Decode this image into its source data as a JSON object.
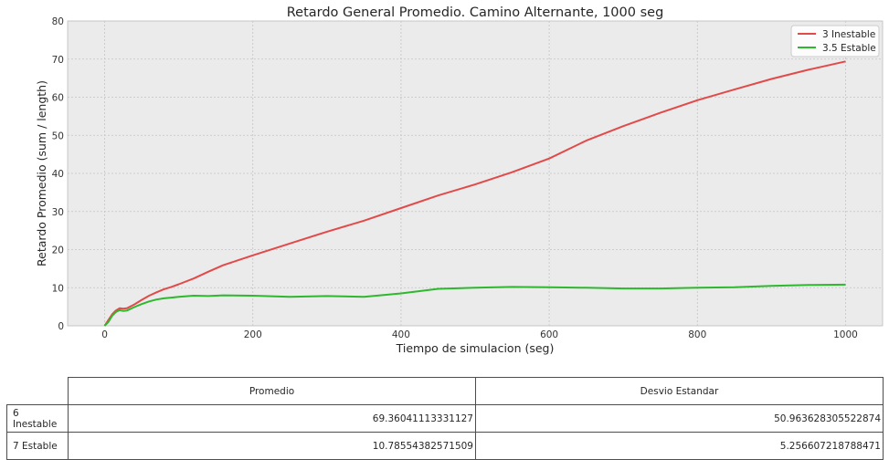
{
  "chart_data": {
    "type": "line",
    "title": "Retardo General Promedio. Camino Alternante, 1000 seg",
    "xlabel": "Tiempo de simulacion (seg)",
    "ylabel": "Retardo Promedio (sum / length)",
    "xlim": [
      -50,
      1050
    ],
    "ylim": [
      0,
      80
    ],
    "xticks": [
      0,
      200,
      400,
      600,
      800,
      1000
    ],
    "yticks": [
      0,
      10,
      20,
      30,
      40,
      50,
      60,
      70,
      80
    ],
    "grid": true,
    "legend_position": "top-right",
    "series": [
      {
        "name": "3 Inestable",
        "color": "#e24a4a",
        "x": [
          0,
          5,
          10,
          15,
          20,
          25,
          30,
          40,
          50,
          60,
          70,
          80,
          90,
          100,
          120,
          140,
          160,
          180,
          200,
          250,
          300,
          350,
          400,
          450,
          500,
          550,
          600,
          650,
          700,
          750,
          800,
          850,
          900,
          950,
          1000
        ],
        "y": [
          0,
          1.5,
          3.0,
          4.0,
          4.6,
          4.5,
          4.6,
          5.6,
          6.8,
          7.9,
          8.8,
          9.6,
          10.2,
          10.9,
          12.4,
          14.2,
          15.9,
          17.2,
          18.5,
          21.6,
          24.7,
          27.6,
          30.9,
          34.2,
          37.1,
          40.3,
          43.9,
          48.6,
          52.4,
          55.9,
          59.2,
          62.0,
          64.8,
          67.2,
          69.4
        ]
      },
      {
        "name": "3.5 Estable",
        "color": "#2eb82e",
        "x": [
          0,
          5,
          10,
          15,
          20,
          25,
          30,
          40,
          50,
          60,
          70,
          80,
          90,
          100,
          120,
          140,
          160,
          200,
          250,
          300,
          350,
          400,
          450,
          500,
          550,
          600,
          650,
          700,
          750,
          800,
          850,
          900,
          950,
          1000
        ],
        "y": [
          0,
          1.0,
          2.6,
          3.6,
          4.1,
          3.9,
          4.0,
          4.9,
          5.7,
          6.4,
          6.9,
          7.2,
          7.4,
          7.6,
          7.9,
          7.8,
          8.0,
          7.9,
          7.6,
          7.8,
          7.6,
          8.5,
          9.7,
          10.0,
          10.2,
          10.1,
          10.0,
          9.8,
          9.8,
          10.0,
          10.1,
          10.5,
          10.7,
          10.8
        ]
      }
    ]
  },
  "table": {
    "headers": [
      "Promedio",
      "Desvio Estandar"
    ],
    "rows": [
      {
        "label": "6 Inestable",
        "promedio": "69.36041113331127",
        "desvio": "50.963628305522874"
      },
      {
        "label": "7 Estable",
        "promedio": "10.78554382571509",
        "desvio": "5.256607218788471"
      }
    ]
  }
}
